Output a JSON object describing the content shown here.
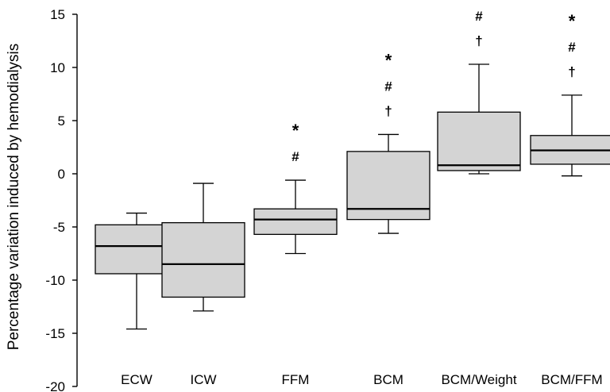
{
  "chart_data": {
    "type": "box",
    "ylabel": "Percentage variation induced by hemodialysis",
    "ylim": [
      -20,
      15
    ],
    "yticks": [
      15,
      10,
      5,
      0,
      -5,
      -10,
      -15,
      -20
    ],
    "categories": [
      "ECW",
      "ICW",
      "FFM",
      "BCM",
      "BCM/Weight",
      "BCM/FFM"
    ],
    "boxes": [
      {
        "category": "ECW",
        "whisker_low": -14.6,
        "q1": -9.4,
        "median": -6.8,
        "q3": -4.8,
        "whisker_high": -3.7,
        "markers": []
      },
      {
        "category": "ICW",
        "whisker_low": -12.9,
        "q1": -11.6,
        "median": -8.5,
        "q3": -4.6,
        "whisker_high": -0.9,
        "markers": []
      },
      {
        "category": "FFM",
        "whisker_low": -7.5,
        "q1": -5.7,
        "median": -4.3,
        "q3": -3.3,
        "whisker_high": -0.6,
        "markers": [
          "*",
          "#"
        ]
      },
      {
        "category": "BCM",
        "whisker_low": -5.6,
        "q1": -4.3,
        "median": -3.3,
        "q3": 2.1,
        "whisker_high": 3.7,
        "markers": [
          "*",
          "#",
          "†"
        ]
      },
      {
        "category": "BCM/Weight",
        "whisker_low": 0.0,
        "q1": 0.3,
        "median": 0.8,
        "q3": 5.8,
        "whisker_high": 10.3,
        "markers": [
          "#",
          "†"
        ]
      },
      {
        "category": "BCM/FFM",
        "whisker_low": -0.2,
        "q1": 0.9,
        "median": 2.2,
        "q3": 3.6,
        "whisker_high": 7.4,
        "markers": [
          "*",
          "#",
          "†"
        ]
      }
    ],
    "colors": {
      "box_fill": "#d4d4d4",
      "stroke": "#000000"
    }
  }
}
